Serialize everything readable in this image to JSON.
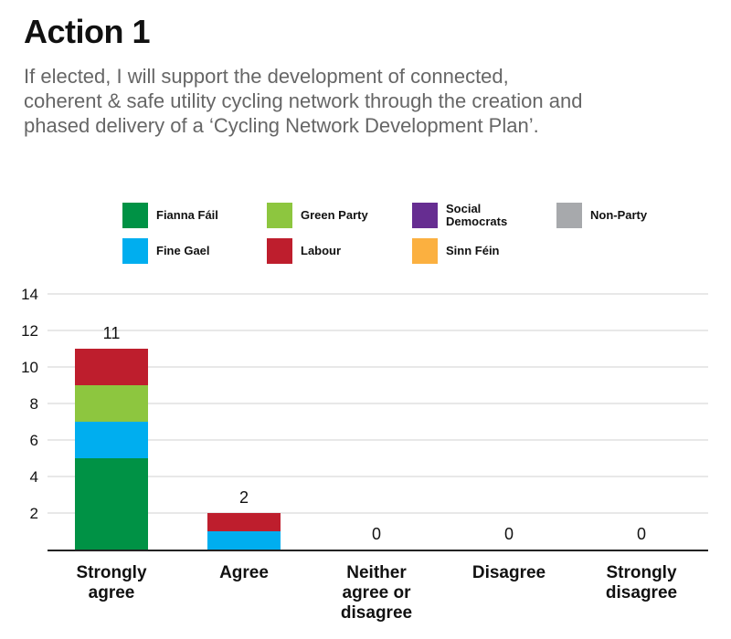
{
  "header": {
    "title": "Action 1",
    "subtitle_lines": [
      "If elected, I will support the development of connected,",
      "coherent & safe utility cycling network through the creation and",
      "phased delivery of a ‘Cycling Network Development Plan’."
    ]
  },
  "chart_data": {
    "type": "bar",
    "stacked": true,
    "categories": [
      [
        "Strongly",
        "agree"
      ],
      [
        "Agree"
      ],
      [
        "Neither",
        "agree or",
        "disagree"
      ],
      [
        "Disagree"
      ],
      [
        "Strongly",
        "disagree"
      ]
    ],
    "series": [
      {
        "name": "Fianna Fáil",
        "color": "#009245",
        "values": [
          5,
          0,
          0,
          0,
          0
        ]
      },
      {
        "name": "Fine Gael",
        "color": "#00AEEF",
        "values": [
          2,
          1,
          0,
          0,
          0
        ]
      },
      {
        "name": "Green Party",
        "color": "#8DC63F",
        "values": [
          2,
          0,
          0,
          0,
          0
        ]
      },
      {
        "name": "Labour",
        "color": "#BE1E2D",
        "values": [
          2,
          1,
          0,
          0,
          0
        ]
      },
      {
        "name": "Social Democrats",
        "color": "#662D91",
        "values": [
          0,
          0,
          0,
          0,
          0
        ]
      },
      {
        "name": "Sinn Féin",
        "color": "#FBB040",
        "values": [
          0,
          0,
          0,
          0,
          0
        ]
      },
      {
        "name": "Non-Party",
        "color": "#A7A9AC",
        "values": [
          0,
          0,
          0,
          0,
          0
        ]
      }
    ],
    "totals": [
      "11",
      "2",
      "0",
      "0",
      "0"
    ],
    "ylim": [
      0,
      14
    ],
    "yticks": [
      2,
      4,
      6,
      8,
      10,
      12,
      14
    ],
    "grid": true,
    "legend": {
      "placement": "top",
      "items": [
        {
          "label_lines": [
            "Fianna Fáil"
          ],
          "color": "#009245"
        },
        {
          "label_lines": [
            "Green Party"
          ],
          "color": "#8DC63F"
        },
        {
          "label_lines": [
            "Social",
            "Democrats"
          ],
          "color": "#662D91"
        },
        {
          "label_lines": [
            "Non-Party"
          ],
          "color": "#A7A9AC"
        },
        {
          "label_lines": [
            "Fine Gael"
          ],
          "color": "#00AEEF"
        },
        {
          "label_lines": [
            "Labour"
          ],
          "color": "#BE1E2D"
        },
        {
          "label_lines": [
            "Sinn Féin"
          ],
          "color": "#FBB040"
        }
      ]
    }
  }
}
